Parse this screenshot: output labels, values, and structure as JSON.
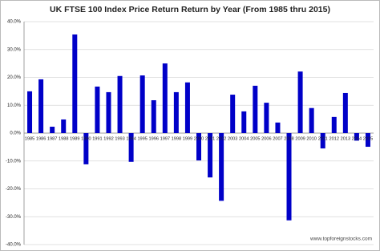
{
  "chart_data": {
    "type": "bar",
    "title": "UK FTSE 100 Index Price Return Return by Year (From 1985 thru 2015)",
    "categories": [
      "1985",
      "1986",
      "1987",
      "1988",
      "1989",
      "1990",
      "1991",
      "1992",
      "1993",
      "1994",
      "1995",
      "1996",
      "1997",
      "1998",
      "1999",
      "2000",
      "2001",
      "2002",
      "2003",
      "2004",
      "2005",
      "2006",
      "2007",
      "2008",
      "2009",
      "2010",
      "2011",
      "2012",
      "2013",
      "2014",
      "2015"
    ],
    "values": [
      15,
      19.3,
      2.3,
      4.9,
      35.4,
      -11.2,
      16.7,
      14.7,
      20.5,
      -10.3,
      20.7,
      11.8,
      25,
      14.7,
      18.2,
      -9.8,
      -15.9,
      -24.3,
      13.8,
      7.8,
      17,
      10.9,
      3.8,
      -31.3,
      22.1,
      9,
      -5.5,
      5.8,
      14.4,
      -2.7,
      -4.9
    ],
    "color": "#0000c8",
    "ylim": [
      -40,
      40
    ],
    "yticks": [
      {
        "value": -40,
        "label": "-40.0%"
      },
      {
        "value": -30,
        "label": "-30.0%"
      },
      {
        "value": -20,
        "label": "-20.0%"
      },
      {
        "value": -10,
        "label": "-10.0%"
      },
      {
        "value": 0,
        "label": "0.0%"
      },
      {
        "value": 10,
        "label": "10.0%"
      },
      {
        "value": 20,
        "label": "20.0%"
      },
      {
        "value": 30,
        "label": "30.0%"
      },
      {
        "value": 40,
        "label": "40.0%"
      }
    ],
    "grid": true,
    "annotation": "www.topforeignstocks.com"
  }
}
